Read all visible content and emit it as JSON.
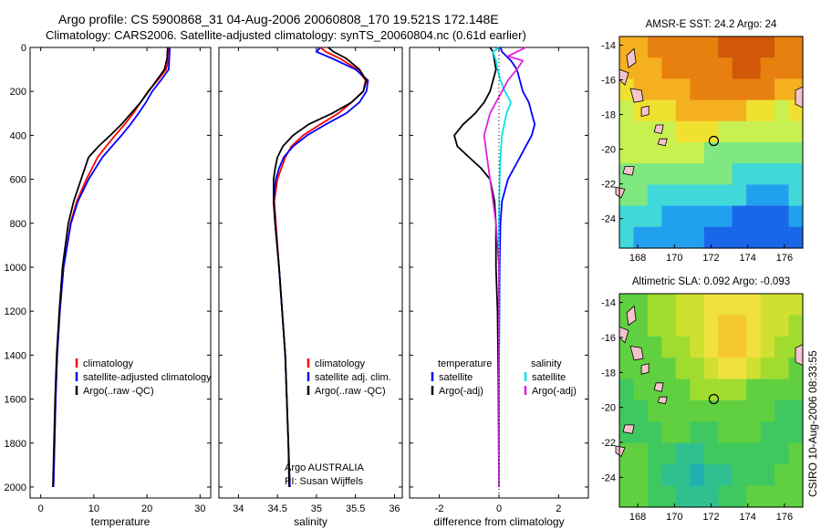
{
  "header": {
    "line1": "Argo profile: CS 5900868_31 04-Aug-2006 20060808_170 19.521S 172.148E",
    "line2": "Climatology: CARS2006. Satellite-adjusted climatology: synTS_20060804.nc (0.61d earlier)"
  },
  "footer": {
    "credit": "Argo AUSTRALIA",
    "pi": "PI: Susan Wijffels",
    "stamp": "CSIRO 10-Aug-2006 08:33:55"
  },
  "colors": {
    "climatology": "#ff0000",
    "satellite": "#0000ff",
    "argo": "#000000",
    "sal_sat": "#00e5e5",
    "sal_argo": "#e020e0",
    "island": "#f5c4cc"
  },
  "chart_data": [
    {
      "type": "line",
      "id": "temperature",
      "xlabel": "temperature",
      "ylabel": "",
      "xlim": [
        -2,
        32
      ],
      "ylim": [
        2050,
        0
      ],
      "xticks": [
        0,
        10,
        20,
        30
      ],
      "yticks": [
        0,
        200,
        400,
        600,
        800,
        1000,
        1200,
        1400,
        1600,
        1800,
        2000
      ],
      "legend": [
        "climatology",
        "satellite-adjusted climatology",
        "Argo(..raw -QC)"
      ],
      "series": [
        {
          "name": "climatology",
          "color": "#ff0000",
          "depth": [
            0,
            50,
            100,
            150,
            200,
            250,
            300,
            350,
            400,
            450,
            500,
            600,
            700,
            800,
            1000,
            1200,
            1400,
            1600,
            1800,
            2000
          ],
          "values": [
            24.2,
            24.1,
            23.6,
            22.0,
            20.2,
            18.8,
            17.4,
            15.8,
            14.0,
            12.3,
            10.7,
            8.6,
            6.8,
            5.6,
            4.3,
            3.6,
            3.1,
            2.8,
            2.6,
            2.4
          ]
        },
        {
          "name": "satellite",
          "color": "#0000ff",
          "depth": [
            0,
            50,
            100,
            150,
            200,
            250,
            300,
            350,
            400,
            450,
            500,
            600,
            700,
            800,
            1000,
            1200,
            1400,
            1600,
            1800,
            2000
          ],
          "values": [
            24.3,
            24.2,
            24.1,
            22.6,
            21.0,
            19.8,
            18.4,
            16.9,
            15.2,
            13.4,
            11.6,
            9.0,
            7.0,
            5.7,
            4.3,
            3.6,
            3.1,
            2.8,
            2.6,
            2.4
          ]
        },
        {
          "name": "argo",
          "color": "#000000",
          "depth": [
            0,
            50,
            100,
            150,
            200,
            250,
            300,
            350,
            400,
            450,
            500,
            600,
            700,
            800,
            1000,
            1200,
            1400,
            1600,
            1800,
            2000
          ],
          "values": [
            23.9,
            23.8,
            23.3,
            21.8,
            20.3,
            18.8,
            17.0,
            15.2,
            13.1,
            10.9,
            9.0,
            7.6,
            6.2,
            5.2,
            4.1,
            3.5,
            3.0,
            2.7,
            2.5,
            2.3
          ]
        }
      ]
    },
    {
      "type": "line",
      "id": "salinity",
      "xlabel": "salinity",
      "xlim": [
        33.75,
        36.1
      ],
      "ylim": [
        2050,
        0
      ],
      "xticks": [
        34,
        34.5,
        35,
        35.5,
        36
      ],
      "legend": [
        "climatology",
        "satellite adj. clim.",
        "Argo(..raw -QC)"
      ],
      "series": [
        {
          "name": "climatology",
          "color": "#ff0000",
          "depth": [
            0,
            20,
            50,
            100,
            150,
            200,
            250,
            300,
            350,
            400,
            450,
            500,
            550,
            600,
            700,
            800,
            1000,
            1200,
            1400,
            1600,
            1800,
            2000
          ],
          "values": [
            35.05,
            35.12,
            35.3,
            35.52,
            35.63,
            35.6,
            35.45,
            35.28,
            35.05,
            34.83,
            34.68,
            34.6,
            34.55,
            34.5,
            34.46,
            34.48,
            34.52,
            34.56,
            34.6,
            34.62,
            34.64,
            34.66
          ]
        },
        {
          "name": "satellite",
          "color": "#0000ff",
          "depth": [
            0,
            20,
            50,
            100,
            150,
            200,
            250,
            300,
            350,
            400,
            450,
            500,
            550,
            600,
            700,
            800,
            1000,
            1200,
            1400,
            1600,
            1800,
            2000
          ],
          "values": [
            35.05,
            35.0,
            35.2,
            35.5,
            35.66,
            35.64,
            35.55,
            35.38,
            35.12,
            34.88,
            34.7,
            34.58,
            34.52,
            34.48,
            34.45,
            34.47,
            34.52,
            34.56,
            34.6,
            34.62,
            34.64,
            34.66
          ]
        },
        {
          "name": "argo",
          "color": "#000000",
          "depth": [
            0,
            20,
            50,
            100,
            150,
            200,
            250,
            300,
            350,
            400,
            450,
            500,
            550,
            600,
            700,
            800,
            1000,
            1200,
            1400,
            1600,
            1800,
            2000
          ],
          "values": [
            35.15,
            35.22,
            35.38,
            35.55,
            35.64,
            35.6,
            35.45,
            35.2,
            34.9,
            34.7,
            34.57,
            34.5,
            34.47,
            34.45,
            34.45,
            34.47,
            34.52,
            34.56,
            34.6,
            34.62,
            34.64,
            34.65
          ]
        }
      ]
    },
    {
      "type": "line",
      "id": "difference",
      "xlabel": "difference from climatology",
      "xlim": [
        -3,
        3
      ],
      "ylim": [
        2050,
        0
      ],
      "xticks": [
        -2,
        0,
        2
      ],
      "legend_temperature": {
        "title": "temperature",
        "items": [
          "satellite",
          "Argo(-adj)"
        ]
      },
      "legend_salinity": {
        "title": "salinity",
        "items": [
          "satellite",
          "Argo(-adj)"
        ]
      },
      "series": [
        {
          "name": "temperature satellite",
          "color": "#0000ff",
          "depth": [
            0,
            20,
            60,
            100,
            150,
            200,
            250,
            300,
            350,
            400,
            450,
            500,
            600,
            700,
            800,
            1000,
            1500,
            2000
          ],
          "values": [
            0.05,
            0.1,
            0.4,
            0.6,
            0.7,
            0.8,
            1.0,
            1.1,
            1.2,
            1.1,
            0.9,
            0.7,
            0.3,
            0.1,
            0.05,
            0.02,
            0.0,
            0.0
          ]
        },
        {
          "name": "temperature argo",
          "color": "#000000",
          "depth": [
            0,
            20,
            60,
            100,
            150,
            200,
            250,
            300,
            350,
            400,
            450,
            500,
            550,
            600,
            700,
            800,
            1000,
            1200,
            1500,
            2000
          ],
          "values": [
            -0.3,
            -0.2,
            -0.15,
            -0.1,
            -0.2,
            -0.3,
            -0.5,
            -0.8,
            -1.2,
            -1.5,
            -1.4,
            -1.0,
            -0.6,
            -0.3,
            -0.15,
            -0.1,
            -0.1,
            -0.05,
            -0.02,
            0.0
          ]
        },
        {
          "name": "salinity satellite",
          "color": "#00e5e5",
          "depth": [
            0,
            20,
            60,
            100,
            150,
            200,
            250,
            300,
            400,
            500,
            600,
            800,
            1000,
            1500,
            2000
          ],
          "values": [
            0.0,
            -0.2,
            -0.1,
            -0.05,
            0.05,
            0.2,
            0.4,
            0.25,
            0.1,
            0.05,
            0.02,
            0.0,
            0.0,
            0.0,
            0.0
          ]
        },
        {
          "name": "salinity argo",
          "color": "#e020e0",
          "depth": [
            0,
            20,
            40,
            60,
            100,
            150,
            200,
            250,
            300,
            400,
            500,
            600,
            700,
            800,
            1000,
            1500,
            2000
          ],
          "values": [
            0.9,
            0.6,
            0.3,
            0.8,
            0.6,
            0.3,
            0.1,
            -0.1,
            -0.3,
            -0.5,
            -0.4,
            -0.3,
            -0.2,
            -0.1,
            0.0,
            0.0,
            0.0
          ]
        }
      ]
    },
    {
      "type": "heatmap",
      "id": "sst",
      "title": "AMSR-E SST: 24.2  Argo: 24",
      "xlim": [
        167,
        177
      ],
      "ylim": [
        -25.7,
        -13.5
      ],
      "xticks": [
        168,
        170,
        172,
        174,
        176
      ],
      "yticks": [
        -14,
        -16,
        -18,
        -20,
        -22,
        -24
      ],
      "colormap": [
        "#1040c0",
        "#1a66e8",
        "#22a0f0",
        "#40d8d8",
        "#80e880",
        "#c8f050",
        "#f0e030",
        "#f5b020",
        "#e88010",
        "#d05808"
      ],
      "rows": [
        [
          7,
          7,
          8,
          8,
          8,
          8,
          8,
          9,
          9,
          9,
          9,
          8,
          8
        ],
        [
          7,
          7,
          7,
          8,
          8,
          8,
          8,
          8,
          9,
          9,
          8,
          8,
          8
        ],
        [
          6,
          7,
          7,
          7,
          7,
          8,
          8,
          8,
          8,
          8,
          8,
          7,
          7
        ],
        [
          5,
          6,
          6,
          6,
          7,
          7,
          7,
          7,
          7,
          6,
          6,
          5,
          6
        ],
        [
          5,
          5,
          5,
          5,
          6,
          6,
          6,
          5,
          5,
          5,
          5,
          5,
          5
        ],
        [
          5,
          5,
          5,
          5,
          5,
          5,
          4,
          4,
          4,
          4,
          4,
          4,
          4
        ],
        [
          4,
          4,
          4,
          4,
          4,
          4,
          4,
          4,
          3,
          3,
          3,
          3,
          3
        ],
        [
          4,
          4,
          3,
          3,
          3,
          3,
          3,
          3,
          3,
          2,
          2,
          2,
          3
        ],
        [
          3,
          3,
          3,
          2,
          2,
          2,
          2,
          2,
          1,
          1,
          1,
          1,
          2
        ],
        [
          3,
          2,
          2,
          2,
          2,
          2,
          1,
          1,
          1,
          1,
          1,
          1,
          1
        ]
      ],
      "marker": {
        "lon": 172.148,
        "lat": -19.521
      }
    },
    {
      "type": "heatmap",
      "id": "sla",
      "title": "Altimetric SLA: 0.092  Argo: -0.093",
      "xlim": [
        167,
        177
      ],
      "ylim": [
        -25.7,
        -13.5
      ],
      "xticks": [
        168,
        170,
        172,
        174,
        176
      ],
      "yticks": [
        -14,
        -16,
        -18,
        -20,
        -22,
        -24
      ],
      "colormap": [
        "#20b0b0",
        "#30c090",
        "#40c860",
        "#60d040",
        "#a0dc30",
        "#d0e030",
        "#f0e040",
        "#f5c830"
      ],
      "rows": [
        [
          3,
          3,
          4,
          4,
          5,
          5,
          6,
          6,
          6,
          6,
          5,
          5,
          5
        ],
        [
          3,
          3,
          4,
          4,
          5,
          5,
          6,
          7,
          7,
          6,
          5,
          5,
          4
        ],
        [
          3,
          3,
          3,
          4,
          4,
          5,
          6,
          7,
          7,
          6,
          5,
          4,
          4
        ],
        [
          3,
          3,
          3,
          3,
          4,
          4,
          5,
          6,
          6,
          5,
          4,
          4,
          3
        ],
        [
          2,
          3,
          3,
          3,
          3,
          4,
          4,
          4,
          4,
          3,
          3,
          3,
          3
        ],
        [
          2,
          2,
          3,
          3,
          3,
          3,
          3,
          3,
          3,
          3,
          3,
          2,
          2
        ],
        [
          2,
          2,
          2,
          3,
          3,
          2,
          2,
          3,
          3,
          3,
          2,
          2,
          2
        ],
        [
          3,
          3,
          2,
          2,
          1,
          1,
          2,
          2,
          2,
          2,
          2,
          2,
          3
        ],
        [
          3,
          3,
          2,
          1,
          1,
          0,
          1,
          1,
          2,
          2,
          2,
          3,
          3
        ],
        [
          3,
          3,
          2,
          2,
          1,
          1,
          1,
          2,
          2,
          3,
          3,
          3,
          3
        ]
      ],
      "marker": {
        "lon": 172.148,
        "lat": -19.521
      }
    }
  ]
}
